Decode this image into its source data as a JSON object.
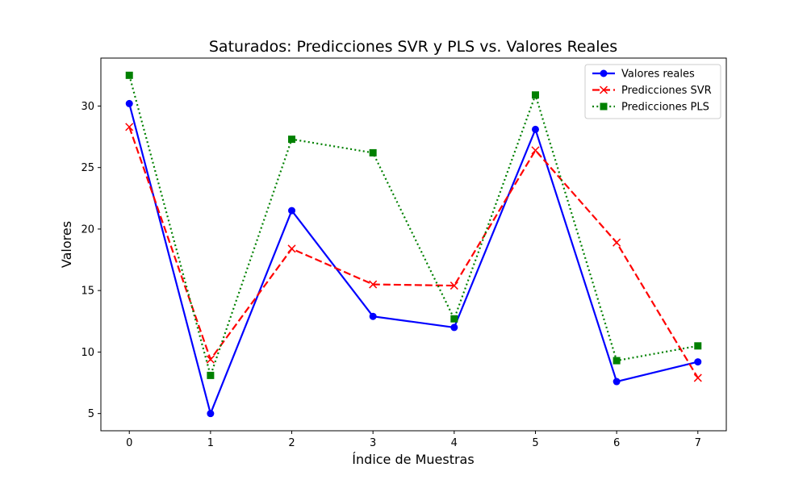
{
  "chart_data": {
    "type": "line",
    "title": "Saturados: Predicciones SVR y PLS vs. Valores Reales",
    "xlabel": "Índice de Muestras",
    "ylabel": "Valores",
    "x": [
      0,
      1,
      2,
      3,
      4,
      5,
      6,
      7
    ],
    "xticks": [
      "0",
      "1",
      "2",
      "3",
      "4",
      "5",
      "6",
      "7"
    ],
    "yticks": [
      "5",
      "10",
      "15",
      "20",
      "25",
      "30"
    ],
    "xlim": [
      -0.35,
      7.35
    ],
    "ylim": [
      3.6,
      33.9
    ],
    "grid": false,
    "legend_position": "top-right",
    "series": [
      {
        "name": "Valores reales",
        "color": "#0000ff",
        "marker": "circle",
        "line_style": "solid",
        "values": [
          30.2,
          5.0,
          21.5,
          12.9,
          12.0,
          28.1,
          7.6,
          9.2
        ]
      },
      {
        "name": "Predicciones SVR",
        "color": "#ff0000",
        "marker": "x",
        "line_style": "dashed",
        "values": [
          28.3,
          9.4,
          18.4,
          15.5,
          15.4,
          26.4,
          18.9,
          7.9
        ]
      },
      {
        "name": "Predicciones PLS",
        "color": "#008000",
        "marker": "square",
        "line_style": "dotted",
        "values": [
          32.5,
          8.1,
          27.3,
          26.2,
          12.7,
          30.9,
          9.3,
          10.5
        ]
      }
    ]
  }
}
